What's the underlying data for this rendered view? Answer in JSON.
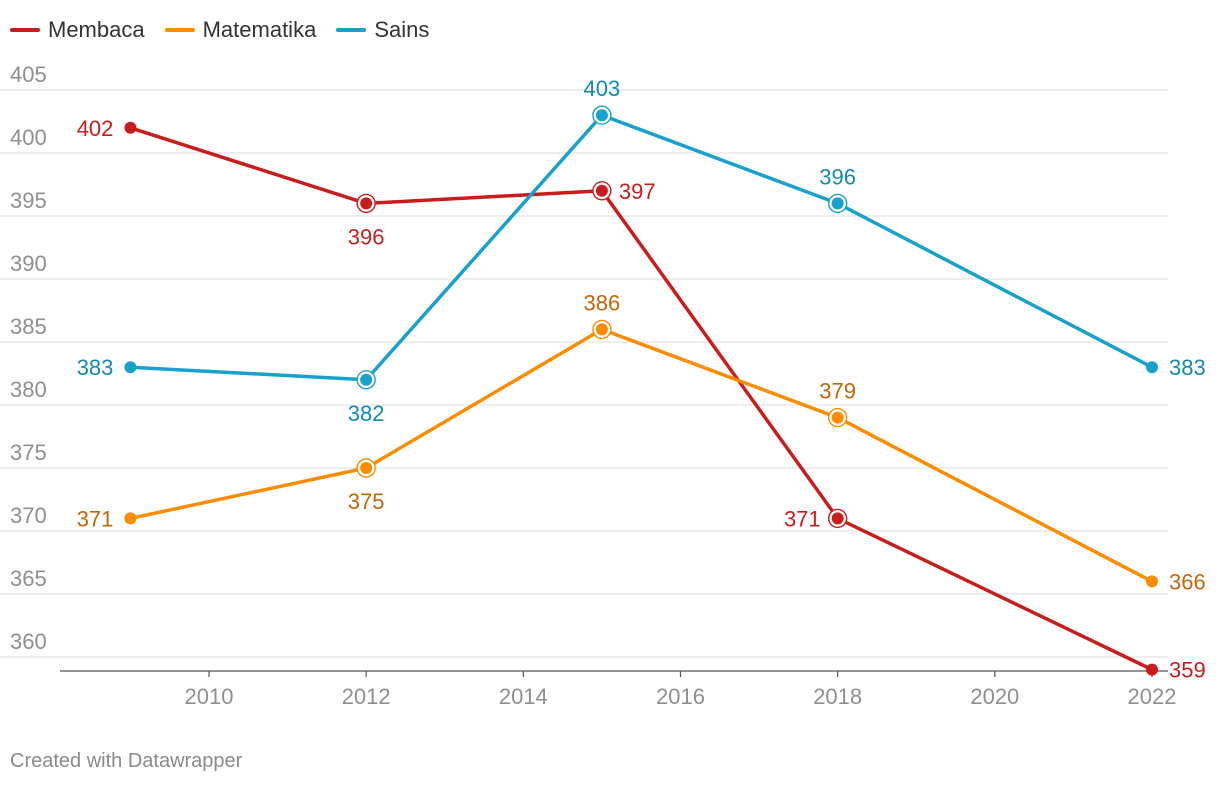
{
  "chart_data": {
    "type": "line",
    "x": [
      2009,
      2012,
      2015,
      2018,
      2022
    ],
    "series": [
      {
        "name": "Membaca",
        "color": "#c71e1d",
        "label_color": "#c71e1d",
        "values": [
          402,
          396,
          397,
          371,
          359
        ]
      },
      {
        "name": "Matematika",
        "color": "#fa8c00",
        "label_color": "#c2660a",
        "values": [
          371,
          375,
          386,
          379,
          366
        ]
      },
      {
        "name": "Sains",
        "color": "#18a1cd",
        "label_color": "#1289ae",
        "values": [
          383,
          382,
          403,
          396,
          383
        ]
      }
    ],
    "xlim": [
      2008.3,
      2022
    ],
    "ylim": [
      358,
      406
    ],
    "x_ticks": [
      2010,
      2012,
      2014,
      2016,
      2018,
      2020,
      2022
    ],
    "y_ticks": [
      360,
      365,
      370,
      375,
      380,
      385,
      390,
      395,
      400,
      405
    ],
    "grid": true,
    "legend": "top-left",
    "title": "",
    "xlabel": "",
    "ylabel": ""
  },
  "footer": {
    "text": "Created with Datawrapper"
  }
}
